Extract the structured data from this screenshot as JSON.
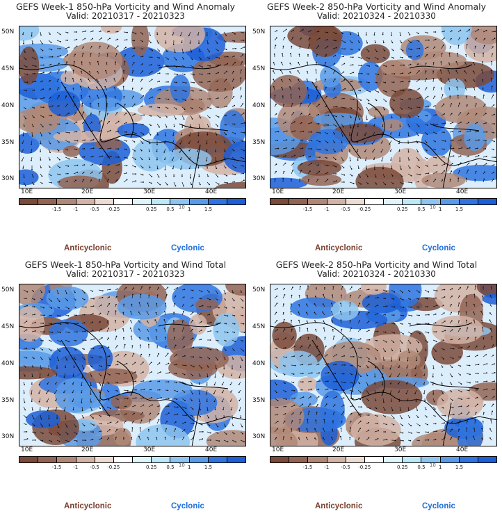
{
  "panels": [
    {
      "title": "GEFS Week-1 850-hPa Vorticity and Wind Anomaly",
      "valid": "Valid: 20210317 - 20210323",
      "seed": 11
    },
    {
      "title": "GEFS Week-2 850-hPa Vorticity and Wind Anomaly",
      "valid": "Valid: 20210324 - 20210330",
      "seed": 23
    },
    {
      "title": "GEFS Week-1 850-hPa Vorticity and Wind Total",
      "valid": "Valid: 20210317 - 20210323",
      "seed": 37
    },
    {
      "title": "GEFS Week-2 850-hPa Vorticity and Wind Total",
      "valid": "Valid: 20210324 - 20210330",
      "seed": 53
    }
  ],
  "lat_labels": [
    "50N",
    "45N",
    "40N",
    "35N",
    "30N"
  ],
  "lon_labels": [
    "10E",
    "20E",
    "30E",
    "40E"
  ],
  "colorbar": {
    "labels": [
      "-1.5",
      "-1",
      "-0.5",
      "-0.25",
      "0.25",
      "0.5",
      "1",
      "1.5"
    ],
    "exponent": "10",
    "colors": [
      "#7a4a3a",
      "#936454",
      "#b08878",
      "#d2b3a6",
      "#ecdcd4",
      "#ffffff",
      "#e0f4fb",
      "#bde8f7",
      "#8ec4ef",
      "#5a9be8",
      "#2f74e0",
      "#1c5fd6"
    ]
  },
  "legend": {
    "anticyclonic": "Anticyclonic",
    "cyclonic": "Cyclonic"
  }
}
